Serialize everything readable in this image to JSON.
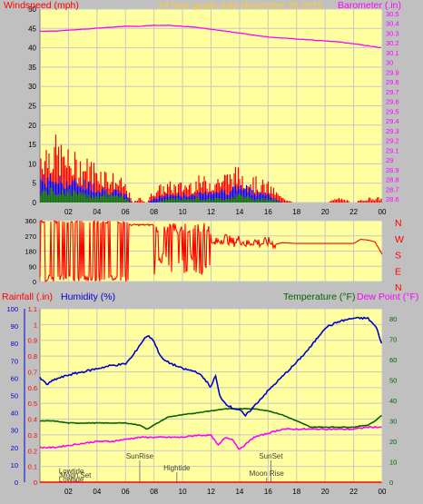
{
  "colors": {
    "background": "#c0c0c0",
    "plot_bg": "#ffffa0",
    "grid": "#c8c8c8",
    "wind": "#ff0000",
    "gust_mid": "#0000ff",
    "gust_low": "#008000",
    "barometer": "#ff00ff",
    "direction": "#ff0000",
    "rainfall": "#ff0000",
    "humidity": "#0000cc",
    "temperature": "#006400",
    "dewpoint": "#ff00ff",
    "title": "#ffcc33"
  },
  "chart_data": [
    {
      "type": "line",
      "name": "wind-barometer",
      "title": "24 hour graph date  November 09 2019",
      "left_axis_label": "Windspeed (mph)",
      "right_axis_label": "Barometer (.in)",
      "x_ticks": [
        "02",
        "04",
        "06",
        "08",
        "10",
        "12",
        "14",
        "16",
        "18",
        "20",
        "22",
        "00"
      ],
      "x_range": [
        0,
        24
      ],
      "left_ticks": [
        "0",
        "5",
        "10",
        "15",
        "20",
        "25",
        "30",
        "35",
        "40",
        "45",
        "50"
      ],
      "left_range": [
        0,
        50
      ],
      "right_ticks": [
        "28.6",
        "28.7",
        "28.8",
        "28.9",
        "29",
        "29.1",
        "29.2",
        "29.3",
        "29.4",
        "29.5",
        "29.6",
        "29.7",
        "29.8",
        "29.9",
        "30",
        "30.1",
        "30.2",
        "30.3",
        "30.4",
        "30.5"
      ],
      "right_range": [
        28.6,
        30.5
      ],
      "series": [
        {
          "name": "Barometer",
          "axis": "right",
          "x": [
            0,
            1,
            2,
            3,
            4,
            5,
            6,
            7,
            8,
            9,
            10,
            11,
            12,
            13,
            14,
            15,
            16,
            17,
            18,
            19,
            20,
            21,
            22,
            23,
            24
          ],
          "y": [
            30.32,
            30.32,
            30.33,
            30.34,
            30.35,
            30.36,
            30.37,
            30.37,
            30.38,
            30.38,
            30.37,
            30.36,
            30.34,
            30.32,
            30.3,
            30.28,
            30.26,
            30.25,
            30.24,
            30.23,
            30.22,
            30.21,
            30.19,
            30.17,
            30.15
          ]
        },
        {
          "name": "Wind gust",
          "axis": "left",
          "x": [
            0,
            1,
            2,
            3,
            4,
            5,
            6,
            6.5,
            7,
            7.5,
            8,
            9,
            10,
            11,
            12,
            13,
            14,
            15,
            16,
            17,
            18,
            19,
            20,
            21,
            22,
            23,
            24
          ],
          "y": [
            12,
            13,
            10,
            9,
            8,
            6,
            4,
            0,
            1,
            0,
            3,
            4,
            4,
            5,
            5,
            6,
            7,
            5,
            4,
            1,
            0,
            0,
            0,
            1,
            0,
            1,
            1
          ]
        },
        {
          "name": "Wind average",
          "axis": "left",
          "x": [
            0,
            1,
            2,
            3,
            4,
            5,
            6,
            6.5,
            7,
            7.5,
            8,
            9,
            10,
            11,
            12,
            13,
            14,
            15,
            16,
            17,
            18,
            19,
            20,
            21,
            22,
            23,
            24
          ],
          "y": [
            6,
            6,
            5,
            5,
            4,
            3,
            2,
            0,
            0,
            0,
            1,
            2,
            2,
            2,
            3,
            3,
            4,
            3,
            2,
            0,
            0,
            0,
            0,
            0,
            0,
            0,
            0
          ]
        },
        {
          "name": "Wind lull",
          "axis": "left",
          "x": [
            0,
            1,
            2,
            3,
            4,
            5,
            6,
            6.5,
            7,
            7.5,
            8,
            9,
            10,
            11,
            12,
            13,
            14,
            15,
            16,
            17,
            18,
            19,
            20,
            21,
            22,
            23,
            24
          ],
          "y": [
            3,
            3,
            3,
            2,
            2,
            2,
            1,
            0,
            0,
            0,
            0,
            1,
            1,
            1,
            1,
            1,
            2,
            1,
            1,
            0,
            0,
            0,
            0,
            0,
            0,
            0,
            0
          ]
        }
      ]
    },
    {
      "type": "line",
      "name": "wind-direction",
      "left_ticks": [
        "0",
        "90",
        "180",
        "270",
        "360"
      ],
      "left_range": [
        0,
        360
      ],
      "right_labels": [
        "N",
        "W",
        "S",
        "E",
        "N"
      ],
      "x_range": [
        0,
        24
      ],
      "series": [
        {
          "name": "Direction",
          "x": [
            0,
            0.5,
            1,
            1.5,
            2,
            2.5,
            3,
            3.5,
            4,
            4.5,
            5,
            5.5,
            6,
            6.5,
            7,
            7.5,
            8,
            8.5,
            9,
            9.5,
            10,
            10.5,
            11,
            11.5,
            12,
            12.5,
            13,
            13.5,
            14,
            14.5,
            15,
            15.5,
            16,
            16.5,
            17,
            18,
            20,
            22,
            22.5,
            23,
            23.5,
            24
          ],
          "y": [
            345,
            20,
            340,
            30,
            350,
            15,
            340,
            40,
            330,
            20,
            350,
            10,
            345,
            330,
            330,
            330,
            20,
            100,
            60,
            300,
            150,
            320,
            200,
            280,
            210,
            240,
            260,
            230,
            250,
            220,
            240,
            225,
            235,
            220,
            230,
            225,
            225,
            225,
            250,
            245,
            235,
            160
          ]
        }
      ]
    },
    {
      "type": "line",
      "name": "rain-humidity-temperature",
      "left_axis_label_1": "Rainfall (.in)",
      "left_axis_label_2": "Humidity (%)",
      "right_axis_label_1": "Temperature (°F)",
      "right_axis_label_2": "Dew Point (°F)",
      "x_ticks": [
        "02",
        "04",
        "06",
        "08",
        "10",
        "12",
        "14",
        "16",
        "18",
        "20",
        "22",
        "00"
      ],
      "x_range": [
        0,
        24
      ],
      "humidity_ticks": [
        "0",
        "10",
        "20",
        "30",
        "40",
        "50",
        "60",
        "70",
        "80",
        "90",
        "100"
      ],
      "rain_ticks": [
        "0",
        "0.1",
        "0.2",
        "0.3",
        "0.4",
        "0.5",
        "0.6",
        "0.7",
        "0.8",
        "0.9",
        "1",
        "1.1"
      ],
      "rain_range": [
        0,
        1.1
      ],
      "temp_ticks": [
        "0",
        "10",
        "20",
        "30",
        "40",
        "50",
        "60",
        "70",
        "80"
      ],
      "temp_range": [
        0,
        85
      ],
      "series": [
        {
          "name": "Humidity",
          "axis": "rain",
          "x": [
            0,
            0.5,
            1,
            2,
            3,
            4,
            5,
            6,
            6.5,
            7,
            7.5,
            7.9,
            8.3,
            8.6,
            9,
            10,
            11,
            11.6,
            12,
            12.3,
            12.6,
            13,
            13.5,
            14,
            14.4,
            15,
            16,
            17,
            18,
            19,
            19.5,
            20,
            21,
            22,
            23,
            23.6,
            24
          ],
          "y": [
            0.66,
            0.62,
            0.65,
            0.68,
            0.7,
            0.72,
            0.74,
            0.75,
            0.8,
            0.87,
            0.93,
            0.91,
            0.83,
            0.78,
            0.76,
            0.72,
            0.7,
            0.65,
            0.6,
            0.68,
            0.55,
            0.5,
            0.47,
            0.46,
            0.42,
            0.48,
            0.58,
            0.67,
            0.76,
            0.86,
            0.92,
            0.98,
            1.02,
            1.04,
            1.04,
            0.98,
            0.87
          ]
        },
        {
          "name": "Temperature",
          "axis": "temp",
          "x": [
            0,
            1,
            2,
            3,
            4,
            5,
            6,
            7,
            7.5,
            8,
            9,
            10,
            11,
            12,
            13,
            14,
            15,
            16,
            17,
            18,
            19,
            20,
            21,
            22,
            23,
            23.5,
            24
          ],
          "y": [
            30,
            30,
            29,
            29,
            29,
            29,
            29,
            28,
            26,
            28,
            32,
            33,
            34,
            35,
            36,
            36,
            36,
            35,
            33,
            30,
            27,
            27,
            27,
            27,
            28,
            30,
            33
          ]
        },
        {
          "name": "Dew Point",
          "axis": "temp",
          "x": [
            0,
            1,
            2,
            3,
            4,
            5,
            6,
            7,
            8,
            9,
            10,
            11,
            12,
            12.5,
            13,
            13.5,
            14,
            14.5,
            15,
            16,
            17,
            18,
            19,
            20,
            21,
            22,
            23,
            24
          ],
          "y": [
            17,
            17,
            18,
            19,
            20,
            20,
            21,
            22,
            22,
            22,
            22,
            23,
            23,
            18,
            22,
            21,
            16,
            19,
            22,
            24,
            26,
            26,
            26,
            26,
            26,
            26,
            27,
            27
          ]
        },
        {
          "name": "Rainfall",
          "axis": "rain",
          "x": [
            0,
            24
          ],
          "y": [
            0,
            0
          ]
        }
      ],
      "annotations": [
        {
          "text": "Lowtide",
          "x": 2.2,
          "level": 0.055
        },
        {
          "text": "Moon Set",
          "x": 2.5,
          "level": 0.03
        },
        {
          "text": "Lowtide",
          "x": 2.2,
          "level": 0.004
        },
        {
          "text": "SunRise",
          "x": 7.0,
          "level": 0.15
        },
        {
          "text": "Hightide",
          "x": 9.6,
          "level": 0.075
        },
        {
          "text": "SunSet",
          "x": 16.2,
          "level": 0.15
        },
        {
          "text": "Moon Rise",
          "x": 15.9,
          "level": 0.04
        }
      ]
    }
  ]
}
